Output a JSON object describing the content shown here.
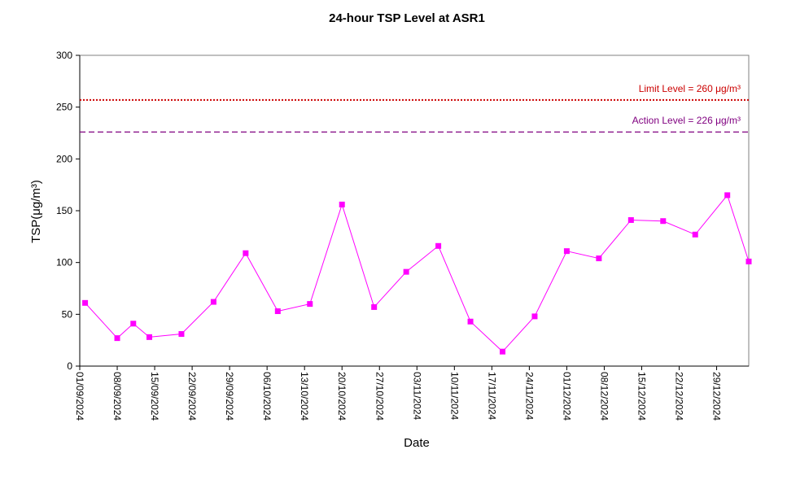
{
  "chart_data": {
    "type": "line",
    "title": "24-hour TSP Level at ASR1",
    "xlabel": "Date",
    "ylabel": "TSP(μg/m³)",
    "ylim": [
      0,
      300
    ],
    "yticks": [
      0,
      50,
      100,
      150,
      200,
      250,
      300
    ],
    "xlim": [
      "2024-09-01",
      "2024-12-31"
    ],
    "xticks": [
      "01/09/2024",
      "08/09/2024",
      "15/09/2024",
      "22/09/2024",
      "29/09/2024",
      "06/10/2024",
      "13/10/2024",
      "20/10/2024",
      "27/10/2024",
      "03/11/2024",
      "10/11/2024",
      "17/11/2024",
      "24/11/2024",
      "01/12/2024",
      "08/12/2024",
      "15/12/2024",
      "22/12/2024",
      "29/12/2024"
    ],
    "grid": false,
    "legend": "none",
    "series": [
      {
        "color": "#ff00ff",
        "marker": "square",
        "points": [
          {
            "x": "2024-09-02",
            "y": 61
          },
          {
            "x": "2024-09-08",
            "y": 27
          },
          {
            "x": "2024-09-11",
            "y": 41
          },
          {
            "x": "2024-09-14",
            "y": 28
          },
          {
            "x": "2024-09-20",
            "y": 31
          },
          {
            "x": "2024-09-26",
            "y": 62
          },
          {
            "x": "2024-10-02",
            "y": 109
          },
          {
            "x": "2024-10-08",
            "y": 53
          },
          {
            "x": "2024-10-14",
            "y": 60
          },
          {
            "x": "2024-10-20",
            "y": 156
          },
          {
            "x": "2024-10-26",
            "y": 57
          },
          {
            "x": "2024-11-01",
            "y": 91
          },
          {
            "x": "2024-11-07",
            "y": 116
          },
          {
            "x": "2024-11-13",
            "y": 43
          },
          {
            "x": "2024-11-19",
            "y": 14
          },
          {
            "x": "2024-11-25",
            "y": 48
          },
          {
            "x": "2024-12-01",
            "y": 111
          },
          {
            "x": "2024-12-07",
            "y": 104
          },
          {
            "x": "2024-12-13",
            "y": 141
          },
          {
            "x": "2024-12-19",
            "y": 140
          },
          {
            "x": "2024-12-25",
            "y": 127
          },
          {
            "x": "2024-12-31",
            "y": 165
          },
          {
            "x": "2025-01-04",
            "y": 101
          }
        ]
      }
    ],
    "reference_lines": [
      {
        "value": 260,
        "label": "Limit Level  = 260 μg/m³",
        "color": "#cc0000",
        "style": "dotted"
      },
      {
        "value": 226,
        "label": "Action Level  = 226 μg/m³",
        "color": "#800080",
        "style": "dashed"
      }
    ]
  }
}
